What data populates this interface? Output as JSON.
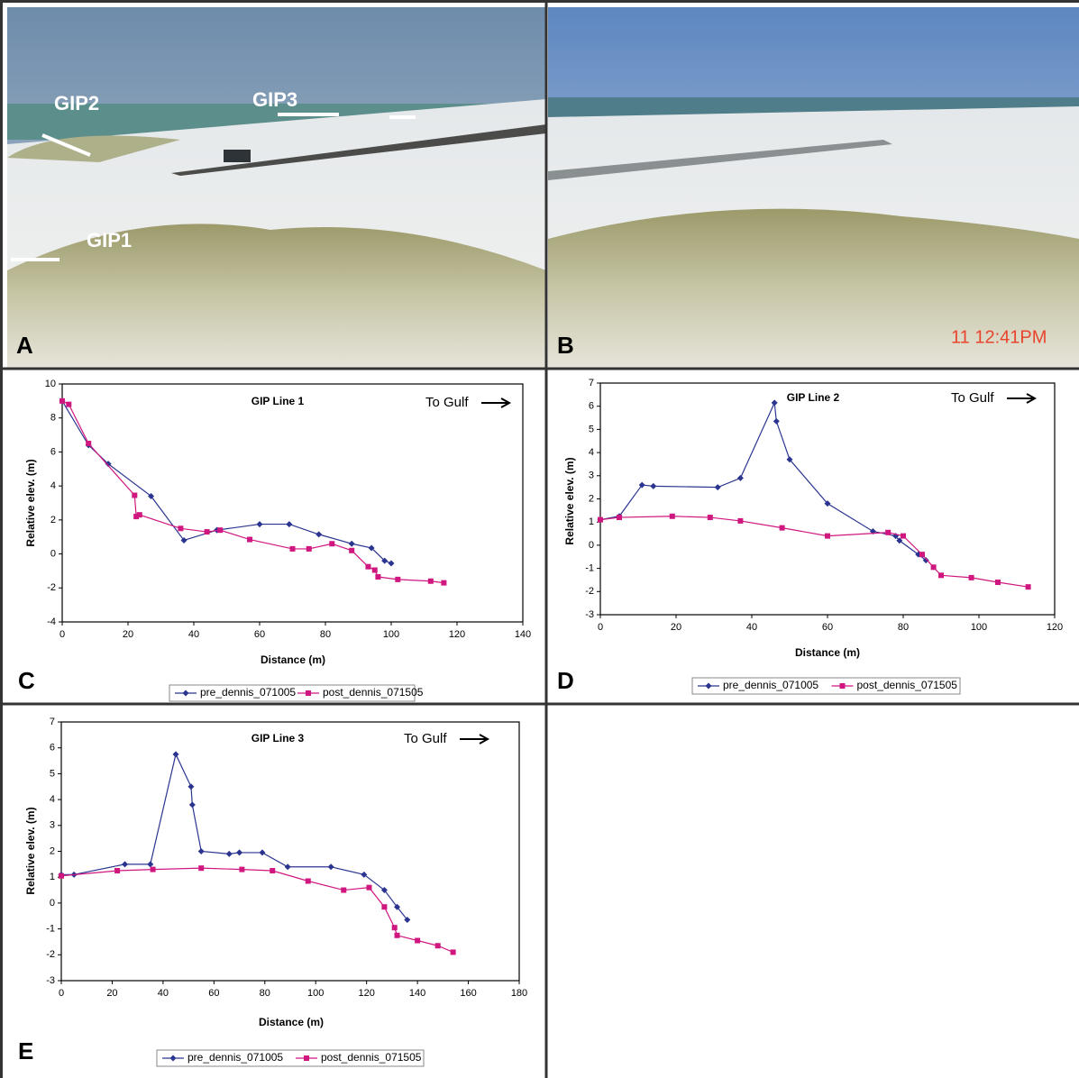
{
  "photos": [
    {
      "panel_label": "A",
      "annotations": [
        "GIP2",
        "GIP3",
        "GIP1"
      ]
    },
    {
      "panel_label": "B",
      "timestamp": "11 12:41PM"
    }
  ],
  "chart_data": [
    {
      "type": "line",
      "panel_label": "C",
      "title": "GIP Line 1",
      "annotation": "To Gulf",
      "x_label": "Distance (m)",
      "y_label": "Relative elev. (m)",
      "xlim": [
        0,
        140
      ],
      "xticks": [
        0,
        20,
        40,
        60,
        80,
        100,
        120,
        140
      ],
      "ylim": [
        -4,
        10
      ],
      "yticks": [
        -4,
        -2,
        0,
        2,
        4,
        6,
        8,
        10
      ],
      "series": [
        {
          "name": "pre_dennis_071005",
          "color": "#2b3590",
          "marker": "diamond",
          "x": [
            0,
            8,
            14,
            27,
            37,
            47,
            60,
            69,
            78,
            88,
            94,
            98,
            100
          ],
          "values": [
            9,
            6.4,
            5.3,
            3.4,
            0.8,
            1.4,
            1.75,
            1.75,
            1.15,
            0.6,
            0.35,
            -0.4,
            -0.55
          ]
        },
        {
          "name": "post_dennis_071505",
          "color": "#d0167f",
          "marker": "square",
          "x": [
            0,
            2,
            8,
            22,
            22.5,
            23.5,
            36,
            44,
            48,
            57,
            70,
            75,
            82,
            88,
            93,
            95,
            96,
            102,
            112,
            116
          ],
          "values": [
            9,
            8.8,
            6.5,
            3.45,
            2.2,
            2.3,
            1.5,
            1.3,
            1.4,
            0.85,
            0.3,
            0.3,
            0.6,
            0.2,
            -0.75,
            -0.95,
            -1.35,
            -1.5,
            -1.6,
            -1.7
          ]
        }
      ]
    },
    {
      "type": "line",
      "panel_label": "D",
      "title": "GIP Line 2",
      "annotation": "To Gulf",
      "x_label": "Distance (m)",
      "y_label": "Relative elev. (m)",
      "xlim": [
        0,
        120
      ],
      "xticks": [
        0,
        20,
        40,
        60,
        80,
        100,
        120
      ],
      "ylim": [
        -3,
        7
      ],
      "yticks": [
        -3,
        -2,
        -1,
        0,
        1,
        2,
        3,
        4,
        5,
        6,
        7
      ],
      "series": [
        {
          "name": "pre_dennis_071005",
          "color": "#2b3590",
          "marker": "diamond",
          "x": [
            0,
            5,
            11,
            14,
            31,
            37,
            46,
            46.5,
            50,
            60,
            72,
            78,
            79,
            84,
            86
          ],
          "values": [
            1.1,
            1.25,
            2.6,
            2.55,
            2.5,
            2.9,
            6.15,
            5.35,
            3.7,
            1.8,
            0.6,
            0.4,
            0.2,
            -0.4,
            -0.65
          ]
        },
        {
          "name": "post_dennis_071505",
          "color": "#d0167f",
          "marker": "square",
          "x": [
            0,
            5,
            19,
            29,
            37,
            48,
            60,
            76,
            80,
            85,
            88,
            90,
            98,
            105,
            113
          ],
          "values": [
            1.1,
            1.2,
            1.25,
            1.2,
            1.05,
            0.75,
            0.4,
            0.55,
            0.4,
            -0.4,
            -0.95,
            -1.3,
            -1.4,
            -1.6,
            -1.8
          ]
        }
      ]
    },
    {
      "type": "line",
      "panel_label": "E",
      "title": "GIP Line 3",
      "annotation": "To Gulf",
      "x_label": "Distance (m)",
      "y_label": "Relative elev. (m)",
      "xlim": [
        0,
        180
      ],
      "xticks": [
        0,
        20,
        40,
        60,
        80,
        100,
        120,
        140,
        160,
        180
      ],
      "ylim": [
        -3,
        7
      ],
      "yticks": [
        -3,
        -2,
        -1,
        0,
        1,
        2,
        3,
        4,
        5,
        6,
        7
      ],
      "series": [
        {
          "name": "pre_dennis_071005",
          "color": "#2b3590",
          "marker": "diamond",
          "x": [
            0,
            5,
            25,
            35,
            45,
            51,
            51.5,
            55,
            66,
            70,
            79,
            89,
            106,
            119,
            127,
            132,
            136
          ],
          "values": [
            1.1,
            1.1,
            1.5,
            1.5,
            5.75,
            4.5,
            3.8,
            2,
            1.9,
            1.95,
            1.95,
            1.4,
            1.4,
            1.1,
            0.5,
            -0.15,
            -0.65
          ]
        },
        {
          "name": "post_dennis_071505",
          "color": "#d0167f",
          "marker": "square",
          "x": [
            0,
            22,
            36,
            55,
            71,
            83,
            97,
            111,
            121,
            127,
            131,
            132,
            140,
            148,
            154
          ],
          "values": [
            1.05,
            1.25,
            1.3,
            1.35,
            1.3,
            1.25,
            0.85,
            0.5,
            0.6,
            -0.15,
            -0.95,
            -1.25,
            -1.45,
            -1.65,
            -1.9
          ]
        }
      ]
    }
  ]
}
